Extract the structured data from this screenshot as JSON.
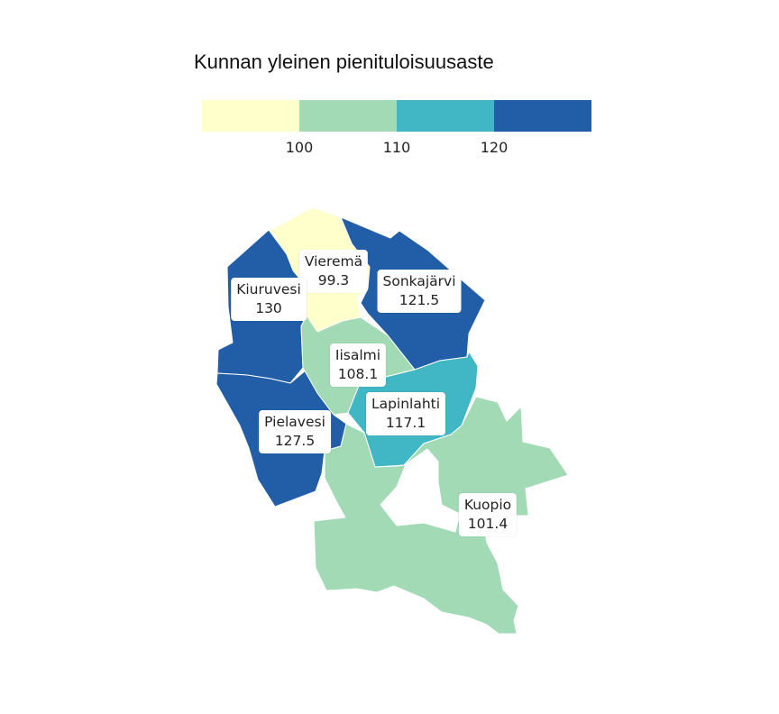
{
  "legend": {
    "title": "Kunnan yleinen pienituloisuusaste",
    "colors": [
      "#ffffcc",
      "#a1dab4",
      "#41b6c4",
      "#225ea8"
    ],
    "ticks": [
      "100",
      "110",
      "120"
    ]
  },
  "municipalities": [
    {
      "name": "Vieremä",
      "value": "99.3",
      "color": "#ffffcc"
    },
    {
      "name": "Kiuruvesi",
      "value": "130",
      "color": "#225ea8"
    },
    {
      "name": "Sonkajärvi",
      "value": "121.5",
      "color": "#225ea8"
    },
    {
      "name": "Iisalmi",
      "value": "108.1",
      "color": "#a1dab4"
    },
    {
      "name": "Lapinlahti",
      "value": "117.1",
      "color": "#41b6c4"
    },
    {
      "name": "Pielavesi",
      "value": "127.5",
      "color": "#225ea8"
    },
    {
      "name": "Kuopio",
      "value": "101.4",
      "color": "#a1dab4"
    }
  ]
}
